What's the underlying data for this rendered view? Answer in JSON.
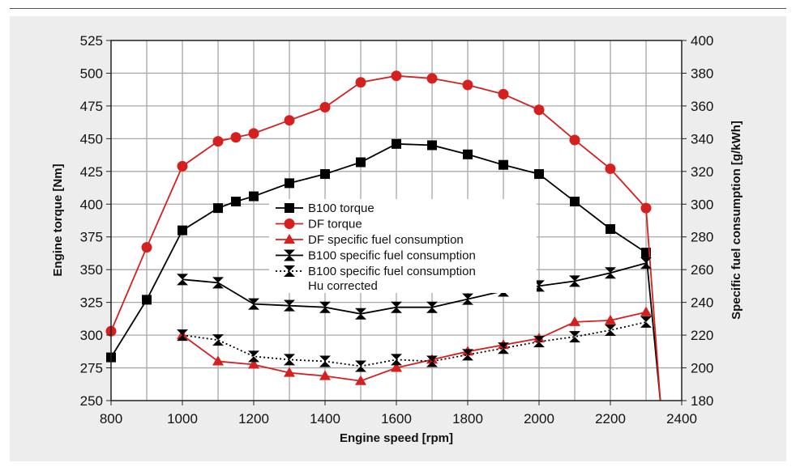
{
  "chart_data": {
    "type": "line",
    "xlabel": "Engine speed [rpm]",
    "ylabel": "Engine torque [Nm]",
    "y2label": "Specific fuel consumption [g/kWh]",
    "xlim": [
      800,
      2400
    ],
    "ylim": [
      250,
      525
    ],
    "y2lim": [
      180,
      400
    ],
    "x_ticks": [
      800,
      1000,
      1200,
      1400,
      1600,
      1800,
      2000,
      2200,
      2400
    ],
    "y_ticks": [
      250,
      275,
      300,
      325,
      350,
      375,
      400,
      425,
      450,
      475,
      500,
      525
    ],
    "y2_ticks": [
      180,
      200,
      220,
      240,
      260,
      280,
      300,
      320,
      340,
      360,
      380,
      400
    ],
    "grid": true,
    "legend_position": "center-left",
    "series": [
      {
        "name": "B100 torque",
        "axis": "left",
        "color": "#000000",
        "marker": "square",
        "line_style": "solid",
        "x": [
          800,
          900,
          1000,
          1100,
          1150,
          1200,
          1300,
          1400,
          1500,
          1600,
          1700,
          1800,
          1900,
          2000,
          2100,
          2200,
          2300,
          2340
        ],
        "y": [
          283,
          327,
          380,
          397,
          402,
          406,
          416,
          423,
          432,
          446,
          445,
          438,
          430,
          423,
          402,
          381,
          363,
          250
        ],
        "markers_through_index": 16
      },
      {
        "name": "DF torque",
        "axis": "left",
        "color": "#d62020",
        "marker": "circle",
        "line_style": "solid",
        "x": [
          800,
          900,
          1000,
          1100,
          1150,
          1200,
          1300,
          1400,
          1500,
          1600,
          1700,
          1800,
          1900,
          2000,
          2100,
          2200,
          2300,
          2340
        ],
        "y": [
          303,
          367,
          429,
          448,
          451,
          454,
          464,
          474,
          493,
          498,
          496,
          491,
          484,
          472,
          449,
          427,
          397,
          250
        ],
        "markers_through_index": 16
      },
      {
        "name": "DF specific fuel consumption",
        "axis": "right",
        "color": "#d62020",
        "marker": "triangle",
        "line_style": "solid",
        "x": [
          1000,
          1100,
          1200,
          1300,
          1400,
          1500,
          1600,
          1700,
          1800,
          1900,
          2000,
          2100,
          2200,
          2300
        ],
        "y": [
          220,
          204,
          202,
          197,
          195,
          192,
          200,
          205,
          210,
          214,
          218,
          228,
          229,
          234
        ],
        "markers_through_index": 13
      },
      {
        "name": "B100 specific fuel consumption",
        "axis": "right",
        "color": "#000000",
        "marker": "hourglass",
        "line_style": "solid",
        "x": [
          1000,
          1100,
          1200,
          1300,
          1400,
          1500,
          1600,
          1700,
          1800,
          1900,
          2000,
          2100,
          2200,
          2300
        ],
        "y": [
          254,
          252,
          239,
          238,
          237,
          233,
          237,
          237,
          242,
          247,
          250,
          253,
          258,
          264
        ],
        "markers_through_index": 13
      },
      {
        "name": "B100 specific fuel consumption Hu corrected",
        "axis": "right",
        "color": "#000000",
        "marker": "hourglass",
        "line_style": "dotted",
        "x": [
          1000,
          1100,
          1200,
          1300,
          1400,
          1500,
          1600,
          1700,
          1800,
          1900,
          2000,
          2100,
          2200,
          2300
        ],
        "y": [
          220,
          217,
          207,
          205,
          204,
          201,
          205,
          204,
          208,
          212,
          216,
          219,
          223,
          228
        ],
        "markers_through_index": 13
      }
    ]
  },
  "legend": {
    "entries": [
      "B100 torque",
      "DF torque",
      "DF specific fuel consumption",
      "B100 specific fuel consumption",
      "B100 specific fuel consumption"
    ],
    "continuation_line": "Hu corrected"
  }
}
